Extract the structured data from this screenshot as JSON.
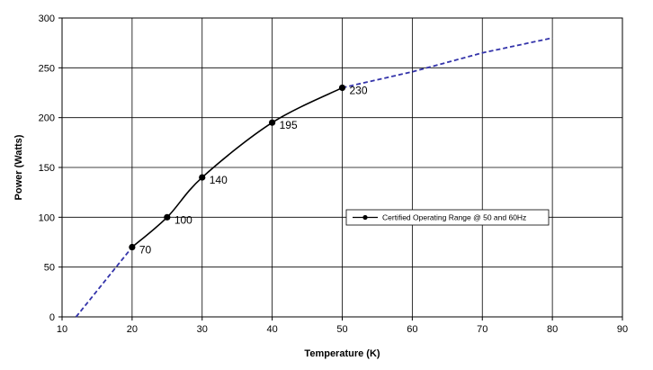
{
  "chart_data": {
    "type": "line",
    "xlabel": "Temperature (K)",
    "ylabel": "Power (Watts)",
    "xlim": [
      10,
      90
    ],
    "ylim": [
      0,
      300
    ],
    "x_ticks": [
      10,
      20,
      30,
      40,
      50,
      60,
      70,
      80,
      90
    ],
    "y_ticks": [
      0,
      50,
      100,
      150,
      200,
      250,
      300
    ],
    "grid": true,
    "legend_position": "middle-right",
    "series": [
      {
        "name": "Certified Operating Range @ 50 and 60Hz",
        "style": "solid",
        "color": "#000000",
        "markers": true,
        "x": [
          20,
          25,
          30,
          40,
          50
        ],
        "y": [
          70,
          100,
          140,
          195,
          230
        ],
        "labels": [
          "70",
          "100",
          "140",
          "195",
          "230"
        ]
      },
      {
        "style": "dashed",
        "color": "#3333aa",
        "markers": false,
        "x": [
          12,
          20
        ],
        "y": [
          0,
          70
        ]
      },
      {
        "style": "dashed",
        "color": "#3333aa",
        "markers": false,
        "x": [
          50,
          60,
          70,
          80
        ],
        "y": [
          230,
          246,
          265,
          280
        ]
      }
    ]
  }
}
